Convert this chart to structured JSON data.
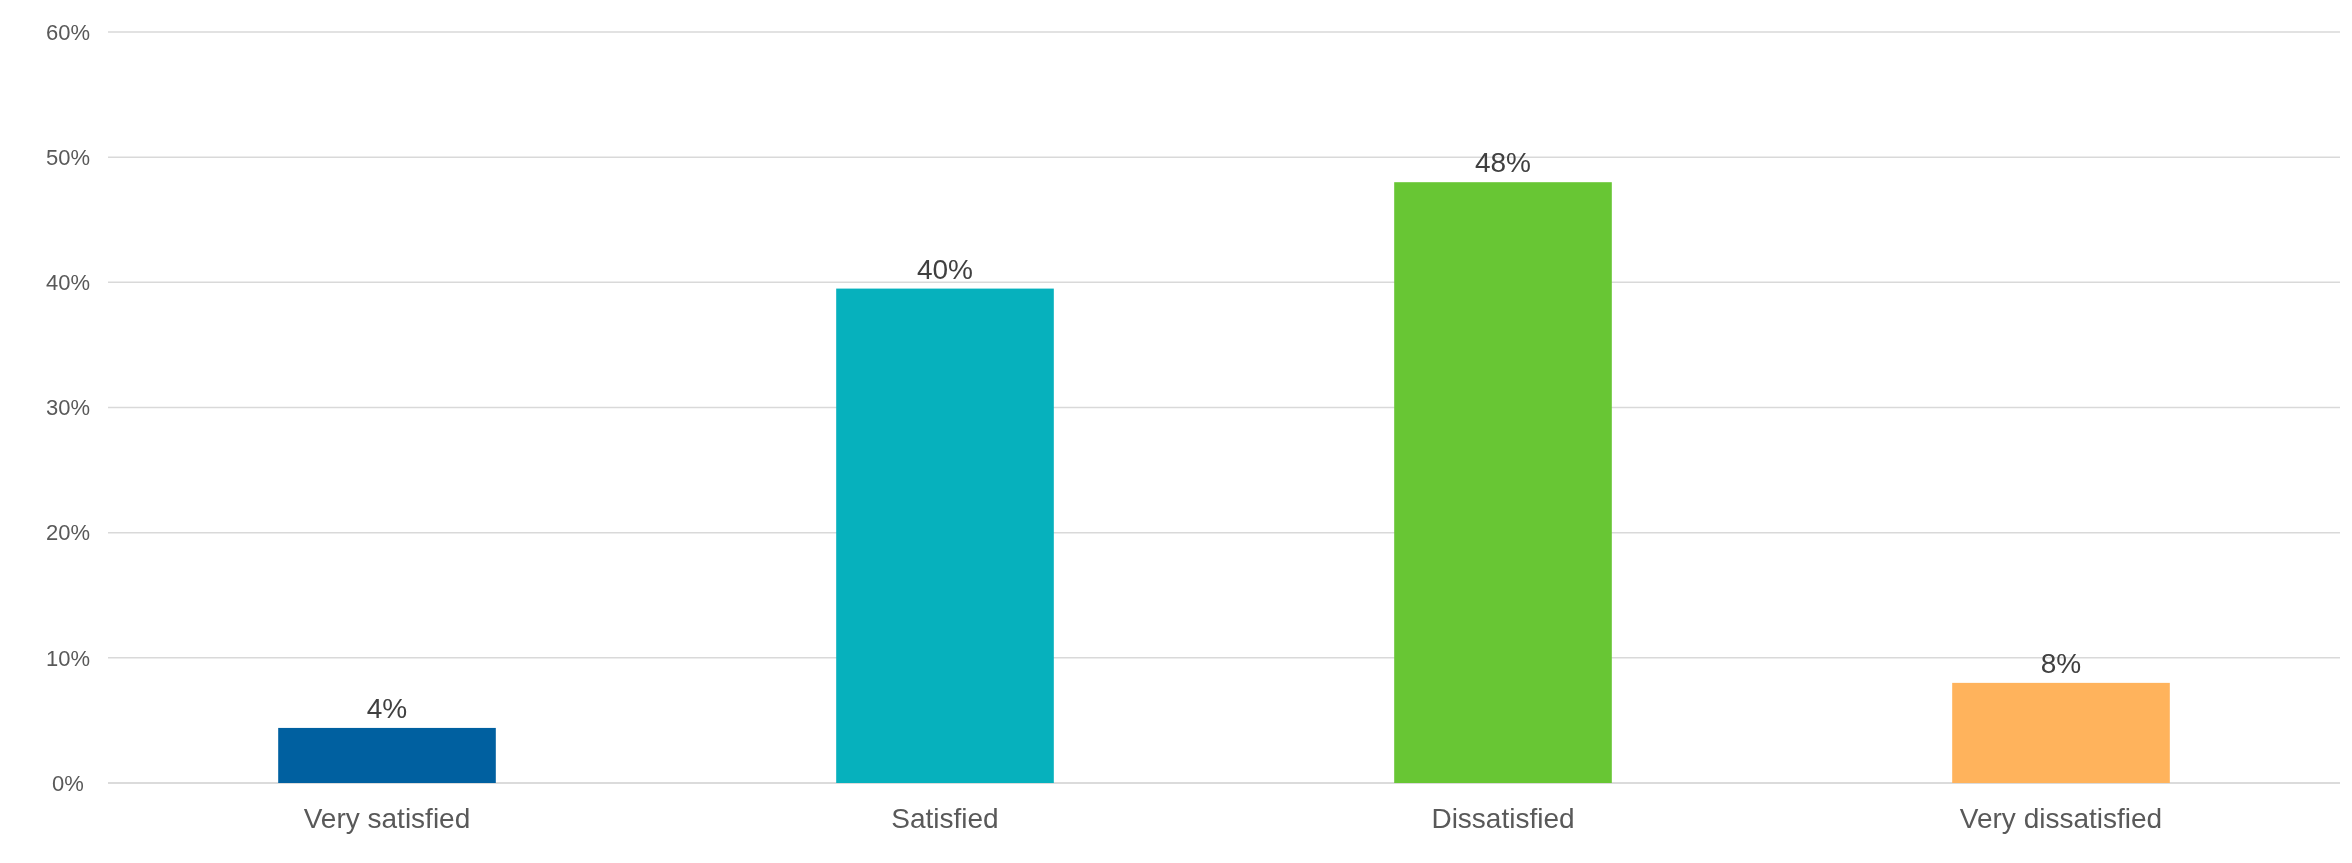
{
  "chart_data": {
    "type": "bar",
    "categories": [
      "Very satisfied",
      "Satisfied",
      "Dissatisfied",
      "Very dissatisfied"
    ],
    "values": [
      4.4,
      39.5,
      48,
      8
    ],
    "colors": [
      "#0060a0",
      "#06b1bd",
      "#68c634",
      "#ffb35c"
    ],
    "value_labels": [
      "4%",
      "40%",
      "48%",
      "8%"
    ],
    "ylim": [
      0,
      60
    ],
    "yticks": [
      {
        "value": 0,
        "label": "0%"
      },
      {
        "value": 10,
        "label": "10%"
      },
      {
        "value": 20,
        "label": "20%"
      },
      {
        "value": 30,
        "label": "30%"
      },
      {
        "value": 40,
        "label": "40%"
      },
      {
        "value": 50,
        "label": "50%"
      },
      {
        "value": 60,
        "label": "60%"
      }
    ],
    "grid": "y"
  }
}
